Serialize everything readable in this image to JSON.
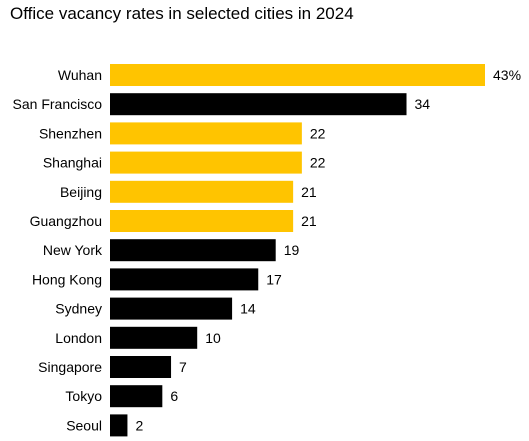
{
  "chart_data": {
    "type": "bar",
    "orientation": "horizontal",
    "title": "Office vacancy rates in selected cities in 2024",
    "xlabel": "",
    "ylabel": "",
    "xlim": [
      0,
      43
    ],
    "grid": false,
    "legend": "none",
    "categories": [
      "Wuhan",
      "San Francisco",
      "Shenzhen",
      "Shanghai",
      "Beijing",
      "Guangzhou",
      "New York",
      "Hong Kong",
      "Sydney",
      "London",
      "Singapore",
      "Tokyo",
      "Seoul"
    ],
    "values": [
      43,
      34,
      22,
      22,
      21,
      21,
      19,
      17,
      14,
      10,
      7,
      6,
      2
    ],
    "value_labels": [
      "43%",
      "34",
      "22",
      "22",
      "21",
      "21",
      "19",
      "17",
      "14",
      "10",
      "7",
      "6",
      "2"
    ],
    "bar_colors": [
      "#FFC400",
      "#000000",
      "#FFC400",
      "#FFC400",
      "#FFC400",
      "#FFC400",
      "#000000",
      "#000000",
      "#000000",
      "#000000",
      "#000000",
      "#000000",
      "#000000"
    ]
  }
}
